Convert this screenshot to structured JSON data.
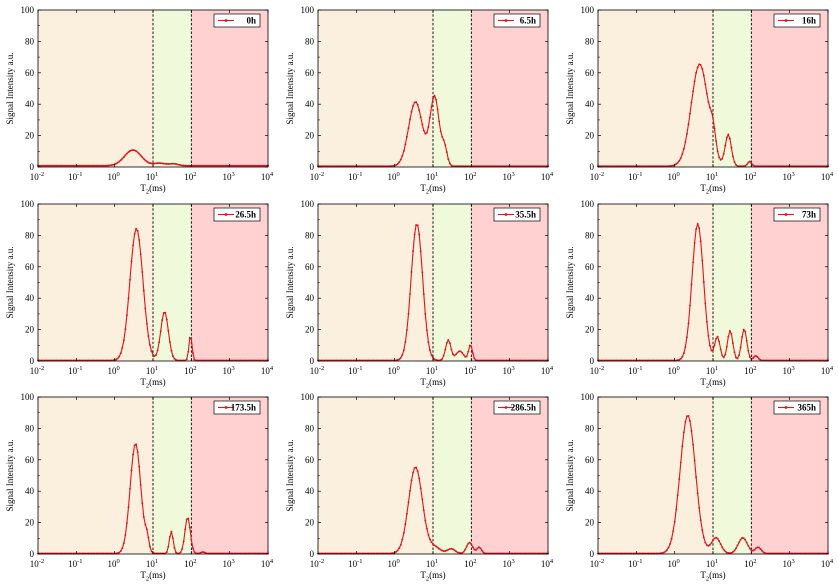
{
  "ylabel": "Signal Intensity a.u.",
  "xlabel_main": "T",
  "xlabel_sub": "2",
  "xlabel_unit": "(ms)",
  "colors": {
    "region_low": "#fbf0dd",
    "region_mid": "#f0fada",
    "region_high": "#ffd1d1",
    "series": "#e0141c",
    "divider": "#000000"
  },
  "chart_data": [
    {
      "type": "line",
      "name": "0h",
      "xscale": "log",
      "xlim": [
        0.01,
        10000
      ],
      "ylim": [
        0,
        100
      ],
      "yticks": [
        0,
        20,
        40,
        60,
        80,
        100
      ],
      "xtick_exponents": [
        "-2",
        "-1",
        "0",
        "1",
        "2",
        "3",
        "4"
      ],
      "dividers": [
        10,
        100
      ],
      "legend": "top-right",
      "peaks": [
        {
          "center": 3.0,
          "height": 10,
          "width": 0.22
        },
        {
          "center": 15,
          "height": 1.6,
          "width": 0.15
        },
        {
          "center": 35,
          "height": 1.2,
          "width": 0.12
        }
      ],
      "baseline": 0.8
    },
    {
      "type": "line",
      "name": "6.5h",
      "xscale": "log",
      "xlim": [
        0.01,
        10000
      ],
      "ylim": [
        0,
        100
      ],
      "yticks": [
        0,
        20,
        40,
        60,
        80,
        100
      ],
      "xtick_exponents": [
        "-2",
        "-1",
        "0",
        "1",
        "2",
        "3",
        "4"
      ],
      "dividers": [
        10,
        100
      ],
      "legend": "top-right",
      "peaks": [
        {
          "center": 3.5,
          "height": 41,
          "width": 0.18
        },
        {
          "center": 11,
          "height": 44,
          "width": 0.12
        },
        {
          "center": 20,
          "height": 11,
          "width": 0.07
        }
      ],
      "baseline": 0.5
    },
    {
      "type": "line",
      "name": "16h",
      "xscale": "log",
      "xlim": [
        0.01,
        10000
      ],
      "ylim": [
        0,
        100
      ],
      "yticks": [
        0,
        20,
        40,
        60,
        80,
        100
      ],
      "xtick_exponents": [
        "-2",
        "-1",
        "0",
        "1",
        "2",
        "3",
        "4"
      ],
      "dividers": [
        10,
        100
      ],
      "legend": "top-right",
      "peaks": [
        {
          "center": 4.5,
          "height": 65,
          "width": 0.22
        },
        {
          "center": 10,
          "height": 12,
          "width": 0.07
        },
        {
          "center": 25,
          "height": 20,
          "width": 0.08
        },
        {
          "center": 90,
          "height": 3,
          "width": 0.05
        }
      ],
      "baseline": 0.5
    },
    {
      "type": "line",
      "name": "26.5h",
      "xscale": "log",
      "xlim": [
        0.01,
        10000
      ],
      "ylim": [
        0,
        100
      ],
      "yticks": [
        0,
        20,
        40,
        60,
        80,
        100
      ],
      "xtick_exponents": [
        "-2",
        "-1",
        "0",
        "1",
        "2",
        "3",
        "4"
      ],
      "dividers": [
        10,
        100
      ],
      "legend": "top-right",
      "peaks": [
        {
          "center": 3.7,
          "height": 84,
          "width": 0.17
        },
        {
          "center": 20,
          "height": 31,
          "width": 0.1
        },
        {
          "center": 95,
          "height": 16,
          "width": 0.04
        }
      ],
      "baseline": 0.3
    },
    {
      "type": "line",
      "name": "35.5h",
      "xscale": "log",
      "xlim": [
        0.01,
        10000
      ],
      "ylim": [
        0,
        100
      ],
      "yticks": [
        0,
        20,
        40,
        60,
        80,
        100
      ],
      "xtick_exponents": [
        "-2",
        "-1",
        "0",
        "1",
        "2",
        "3",
        "4"
      ],
      "dividers": [
        10,
        100
      ],
      "legend": "top-right",
      "peaks": [
        {
          "center": 3.8,
          "height": 87,
          "width": 0.15
        },
        {
          "center": 25,
          "height": 13,
          "width": 0.07
        },
        {
          "center": 50,
          "height": 6,
          "width": 0.1
        },
        {
          "center": 95,
          "height": 10,
          "width": 0.05
        }
      ],
      "baseline": 0.3
    },
    {
      "type": "line",
      "name": "73h",
      "xscale": "log",
      "xlim": [
        0.01,
        10000
      ],
      "ylim": [
        0,
        100
      ],
      "yticks": [
        0,
        20,
        40,
        60,
        80,
        100
      ],
      "xtick_exponents": [
        "-2",
        "-1",
        "0",
        "1",
        "2",
        "3",
        "4"
      ],
      "dividers": [
        10,
        100
      ],
      "legend": "top-right",
      "peaks": [
        {
          "center": 4.0,
          "height": 87,
          "width": 0.15
        },
        {
          "center": 13,
          "height": 15,
          "width": 0.07
        },
        {
          "center": 28,
          "height": 19,
          "width": 0.07
        },
        {
          "center": 65,
          "height": 20,
          "width": 0.07
        },
        {
          "center": 130,
          "height": 3,
          "width": 0.06
        }
      ],
      "baseline": 0.3
    },
    {
      "type": "line",
      "name": "173.5h",
      "xscale": "log",
      "xlim": [
        0.01,
        10000
      ],
      "ylim": [
        0,
        100
      ],
      "yticks": [
        0,
        20,
        40,
        60,
        80,
        100
      ],
      "xtick_exponents": [
        "-2",
        "-1",
        "0",
        "1",
        "2",
        "3",
        "4"
      ],
      "dividers": [
        10,
        100
      ],
      "legend": "top-right",
      "peaks": [
        {
          "center": 3.5,
          "height": 70,
          "width": 0.14
        },
        {
          "center": 7,
          "height": 8,
          "width": 0.05
        },
        {
          "center": 30,
          "height": 14,
          "width": 0.05
        },
        {
          "center": 80,
          "height": 23,
          "width": 0.07
        },
        {
          "center": 200,
          "height": 1,
          "width": 0.05
        }
      ],
      "baseline": 0.3
    },
    {
      "type": "line",
      "name": "286.5h",
      "xscale": "log",
      "xlim": [
        0.01,
        10000
      ],
      "ylim": [
        0,
        100
      ],
      "yticks": [
        0,
        20,
        40,
        60,
        80,
        100
      ],
      "xtick_exponents": [
        "-2",
        "-1",
        "0",
        "1",
        "2",
        "3",
        "4"
      ],
      "dividers": [
        10,
        100
      ],
      "legend": "top-right",
      "peaks": [
        {
          "center": 3.5,
          "height": 55,
          "width": 0.18
        },
        {
          "center": 11,
          "height": 4,
          "width": 0.15
        },
        {
          "center": 30,
          "height": 3,
          "width": 0.1
        },
        {
          "center": 90,
          "height": 7,
          "width": 0.08
        },
        {
          "center": 160,
          "height": 4,
          "width": 0.06
        }
      ],
      "baseline": 0.3
    },
    {
      "type": "line",
      "name": "365h",
      "xscale": "log",
      "xlim": [
        0.01,
        10000
      ],
      "ylim": [
        0,
        100
      ],
      "yticks": [
        0,
        20,
        40,
        60,
        80,
        100
      ],
      "xtick_exponents": [
        "-2",
        "-1",
        "0",
        "1",
        "2",
        "3",
        "4"
      ],
      "dividers": [
        10,
        100
      ],
      "legend": "top-right",
      "peaks": [
        {
          "center": 2.2,
          "height": 88,
          "width": 0.2
        },
        {
          "center": 12,
          "height": 10,
          "width": 0.12
        },
        {
          "center": 60,
          "height": 10,
          "width": 0.12
        },
        {
          "center": 150,
          "height": 4,
          "width": 0.08
        }
      ],
      "baseline": 0.3
    }
  ]
}
